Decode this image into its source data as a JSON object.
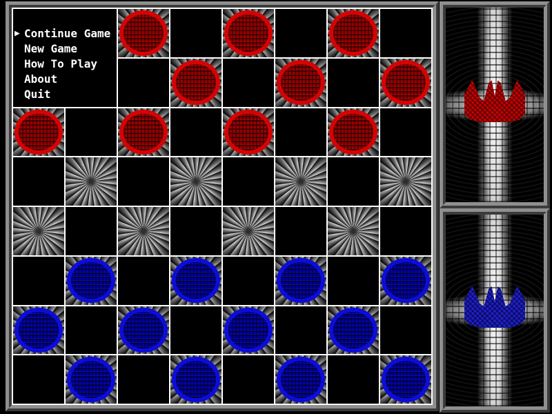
{
  "menu": {
    "cursor_icon": "▶",
    "selected_index": 0,
    "items": [
      "Continue Game",
      "New Game",
      "How To Play",
      "About",
      "Quit"
    ]
  },
  "board": {
    "rows": 8,
    "cols": 8,
    "dark_square_pattern": "starburst",
    "pieces": [
      {
        "row": 0,
        "col": 2,
        "color": "red"
      },
      {
        "row": 0,
        "col": 4,
        "color": "red"
      },
      {
        "row": 0,
        "col": 6,
        "color": "red"
      },
      {
        "row": 1,
        "col": 3,
        "color": "red"
      },
      {
        "row": 1,
        "col": 5,
        "color": "red"
      },
      {
        "row": 1,
        "col": 7,
        "color": "red"
      },
      {
        "row": 2,
        "col": 0,
        "color": "red"
      },
      {
        "row": 2,
        "col": 2,
        "color": "red"
      },
      {
        "row": 2,
        "col": 4,
        "color": "red"
      },
      {
        "row": 2,
        "col": 6,
        "color": "red"
      },
      {
        "row": 5,
        "col": 1,
        "color": "blue"
      },
      {
        "row": 5,
        "col": 3,
        "color": "blue"
      },
      {
        "row": 5,
        "col": 5,
        "color": "blue"
      },
      {
        "row": 5,
        "col": 7,
        "color": "blue"
      },
      {
        "row": 6,
        "col": 0,
        "color": "blue"
      },
      {
        "row": 6,
        "col": 2,
        "color": "blue"
      },
      {
        "row": 6,
        "col": 4,
        "color": "blue"
      },
      {
        "row": 6,
        "col": 6,
        "color": "blue"
      },
      {
        "row": 7,
        "col": 1,
        "color": "blue"
      },
      {
        "row": 7,
        "col": 3,
        "color": "blue"
      },
      {
        "row": 7,
        "col": 5,
        "color": "blue"
      },
      {
        "row": 7,
        "col": 7,
        "color": "blue"
      }
    ]
  },
  "side_panels": {
    "top": {
      "icon": "red-crown",
      "color": "#c40404"
    },
    "bottom": {
      "icon": "blue-crown",
      "color": "#2121cc"
    }
  },
  "colors": {
    "red_piece_ring": "#d40404",
    "red_piece_fill": "#930000",
    "blue_piece_ring": "#0d0dd8",
    "blue_piece_fill": "#0000a2",
    "grid_line": "#ffffff",
    "ray_light": "#d9d9d9",
    "ray_dark": "#0e0e0e",
    "frame_gray": "#8f8f8f",
    "menu_text": "#ffffff"
  }
}
